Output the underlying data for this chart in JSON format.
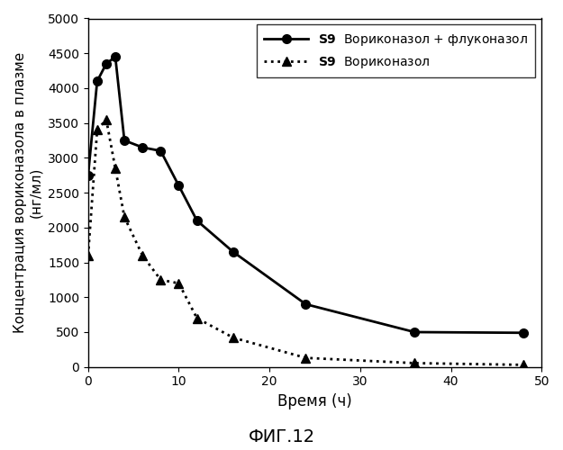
{
  "title": "ФИГ.12",
  "xlabel": "Время (ч)",
  "ylabel": "Концентрация вориконазола в плазме\n(нг/мл)",
  "xlim": [
    0,
    50
  ],
  "ylim": [
    0,
    5000
  ],
  "xticks": [
    0,
    10,
    20,
    30,
    40,
    50
  ],
  "yticks": [
    0,
    500,
    1000,
    1500,
    2000,
    2500,
    3000,
    3500,
    4000,
    4500,
    5000
  ],
  "series1": {
    "label_bold": "S9",
    "label_normal": "  Вориконазол + флуконазол",
    "x": [
      0,
      1,
      2,
      3,
      4,
      6,
      8,
      10,
      12,
      16,
      24,
      36,
      48
    ],
    "y": [
      2750,
      4100,
      4350,
      4450,
      3250,
      3150,
      3100,
      2600,
      2100,
      1650,
      900,
      500,
      490
    ],
    "linestyle": "-",
    "marker": "o",
    "color": "#000000",
    "linewidth": 2.0,
    "markersize": 7
  },
  "series2": {
    "label_bold": "S9",
    "label_normal": "  Вориконазол",
    "x": [
      0,
      1,
      2,
      3,
      4,
      6,
      8,
      10,
      12,
      16,
      24,
      36,
      48
    ],
    "y": [
      1600,
      3400,
      3550,
      2850,
      2150,
      1600,
      1250,
      1200,
      700,
      420,
      130,
      55,
      30
    ],
    "linestyle": ":",
    "marker": "^",
    "color": "#000000",
    "linewidth": 2.0,
    "markersize": 7
  },
  "legend_fontsize": 10,
  "axis_fontsize": 12,
  "tick_fontsize": 10,
  "title_fontsize": 14,
  "background_color": "#ffffff"
}
